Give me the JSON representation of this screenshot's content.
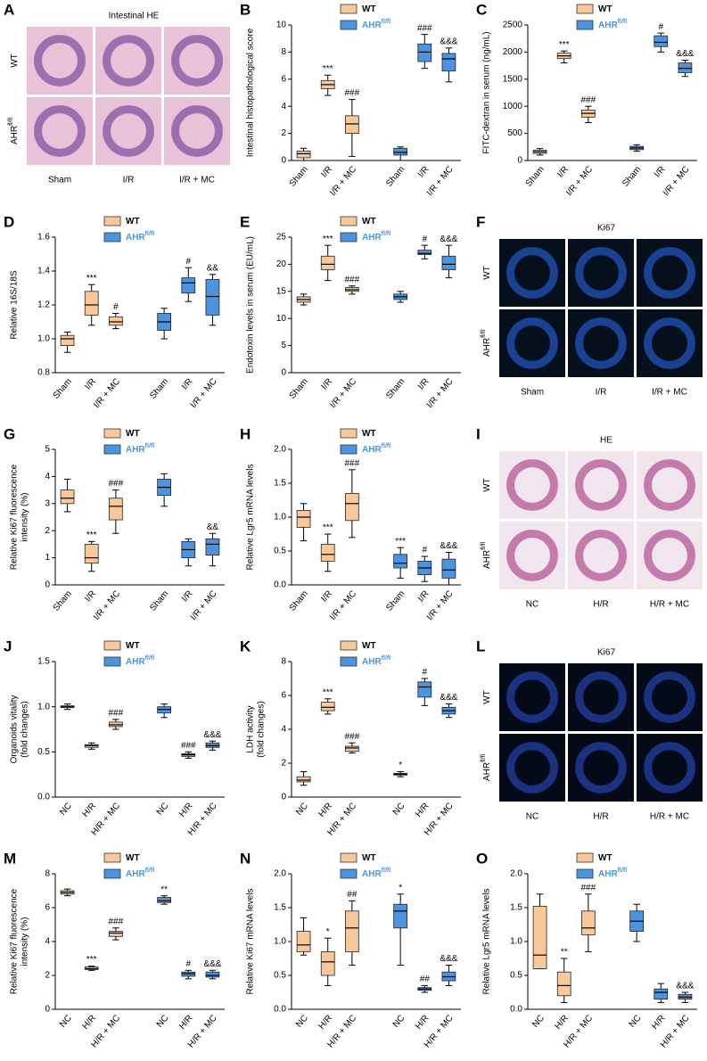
{
  "image_panels": [
    {
      "label": "A",
      "title": "Intestinal HE",
      "rows": [
        {
          "name": "WT"
        },
        {
          "name": "AHR",
          "sup": "fl/fl"
        }
      ],
      "columns": [
        "Sham",
        "I/R",
        "I/R + MC"
      ]
    },
    {
      "label": "F",
      "title": "Ki67",
      "rows": [
        {
          "name": "WT"
        },
        {
          "name": "AHR",
          "sup": "fl/fl"
        }
      ],
      "columns": [
        "Sham",
        "I/R",
        "I/R + MC"
      ]
    },
    {
      "label": "I",
      "title": "HE",
      "rows": [
        {
          "name": "WT"
        },
        {
          "name": "AHR",
          "sup": "fl/fl"
        }
      ],
      "columns": [
        "NC",
        "H/R",
        "H/R + MC"
      ]
    },
    {
      "label": "L",
      "title": "Ki67",
      "rows": [
        {
          "name": "WT"
        },
        {
          "name": "AHR",
          "sup": "fl/fl"
        }
      ],
      "columns": [
        "NC",
        "H/R",
        "H/R + MC"
      ]
    }
  ],
  "chart_data": [
    {
      "type": "box",
      "label": "B",
      "ylabel": [
        "Intestinal histopathological score"
      ],
      "ylim": [
        0,
        10
      ],
      "yticks": [
        0,
        2,
        4,
        6,
        8,
        10
      ],
      "categories": [
        "Sham",
        "I/R",
        "I/R + MC",
        "Sham",
        "I/R",
        "I/R + MC"
      ],
      "series": [
        {
          "name": "WT",
          "color": "#f8c89a",
          "boxes": [
            [
              0,
              0.2,
              0.5,
              0.7,
              0.9
            ],
            [
              4.8,
              5.3,
              5.6,
              5.9,
              6.3
            ],
            [
              0.3,
              2,
              2.7,
              3.3,
              4.5
            ]
          ],
          "annotations": [
            null,
            "***",
            "###"
          ]
        },
        {
          "name": "AHR",
          "sup": "fl/fl",
          "color": "#4d94e0",
          "boxes": [
            [
              0,
              0.4,
              0.6,
              0.9,
              1
            ],
            [
              6.8,
              7.3,
              8,
              8.6,
              9.3
            ],
            [
              5.8,
              6.6,
              7.5,
              7.9,
              8.3
            ]
          ],
          "annotations": [
            null,
            "###",
            "&&&"
          ]
        }
      ]
    },
    {
      "type": "box",
      "label": "C",
      "ylabel": [
        "FITC-dextran in serum (ng/mL)"
      ],
      "ylim": [
        0,
        2500
      ],
      "yticks": [
        0,
        500,
        1000,
        1500,
        2000,
        2500
      ],
      "categories": [
        "Sham",
        "I/R",
        "I/R + MC",
        "Sham",
        "I/R",
        "I/R + MC"
      ],
      "series": [
        {
          "name": "WT",
          "color": "#f8c89a",
          "boxes": [
            [
              100,
              130,
              160,
              190,
              220
            ],
            [
              1800,
              1880,
              1930,
              1980,
              2020
            ],
            [
              700,
              800,
              870,
              930,
              1000
            ]
          ],
          "annotations": [
            null,
            "***",
            "###"
          ]
        },
        {
          "name": "AHR",
          "sup": "fl/fl",
          "color": "#4d94e0",
          "boxes": [
            [
              170,
              200,
              230,
              260,
              290
            ],
            [
              2000,
              2100,
              2180,
              2300,
              2350
            ],
            [
              1550,
              1620,
              1700,
              1800,
              1850
            ]
          ],
          "annotations": [
            null,
            "#",
            "&&&"
          ]
        }
      ]
    },
    {
      "type": "box",
      "label": "D",
      "ylabel": [
        "Relative 16S/18S"
      ],
      "ylim": [
        0.8,
        1.6
      ],
      "yticks": [
        0.8,
        {
          "value": 1,
          "label": "1.0"
        },
        1.2,
        1.4,
        1.6
      ],
      "categories": [
        "Sham",
        "I/R",
        "I/R + MC",
        "Sham",
        "I/R",
        "I/R + MC"
      ],
      "series": [
        {
          "name": "WT",
          "color": "#f8c89a",
          "boxes": [
            [
              0.92,
              0.96,
              1.0,
              1.02,
              1.04
            ],
            [
              1.08,
              1.14,
              1.2,
              1.28,
              1.32
            ],
            [
              1.06,
              1.08,
              1.1,
              1.13,
              1.15
            ]
          ],
          "annotations": [
            null,
            "***",
            "#"
          ]
        },
        {
          "name": "AHR",
          "sup": "fl/fl",
          "color": "#4d94e0",
          "boxes": [
            [
              1.0,
              1.05,
              1.1,
              1.15,
              1.18
            ],
            [
              1.22,
              1.27,
              1.33,
              1.36,
              1.42
            ],
            [
              1.08,
              1.14,
              1.25,
              1.35,
              1.38
            ]
          ],
          "annotations": [
            null,
            "#",
            "&&"
          ]
        }
      ]
    },
    {
      "type": "box",
      "label": "E",
      "ylabel": [
        "Endotoxin levels in serum (EU/mL)"
      ],
      "ylim": [
        0,
        25
      ],
      "yticks": [
        0,
        5,
        10,
        15,
        20,
        25
      ],
      "categories": [
        "Sham",
        "I/R",
        "I/R + MC",
        "Sham",
        "I/R",
        "I/R + MC"
      ],
      "series": [
        {
          "name": "WT",
          "color": "#f8c89a",
          "boxes": [
            [
              12.5,
              13,
              13.5,
              14,
              14.5
            ],
            [
              17,
              19,
              20,
              21.5,
              23.5
            ],
            [
              14.5,
              15,
              15.3,
              15.7,
              16
            ]
          ],
          "annotations": [
            null,
            "***",
            "###"
          ]
        },
        {
          "name": "AHR",
          "sup": "fl/fl",
          "color": "#4d94e0",
          "boxes": [
            [
              13,
              13.5,
              14,
              14.5,
              15
            ],
            [
              21,
              21.8,
              22,
              22.6,
              23.5
            ],
            [
              17.5,
              19,
              20,
              21.5,
              23.5
            ]
          ],
          "annotations": [
            null,
            "#",
            "&&&"
          ]
        }
      ]
    },
    {
      "type": "box",
      "label": "G",
      "ylabel": [
        "Relative Ki67 fluorescence",
        "intensity (%)"
      ],
      "ylim": [
        0,
        5
      ],
      "yticks": [
        0,
        1,
        2,
        3,
        4,
        5
      ],
      "categories": [
        "Sham",
        "I/R",
        "I/R + MC",
        "Sham",
        "I/R",
        "I/R + MC"
      ],
      "series": [
        {
          "name": "WT",
          "color": "#f8c89a",
          "boxes": [
            [
              2.7,
              3,
              3.2,
              3.5,
              3.9
            ],
            [
              0.5,
              0.8,
              1,
              1.5,
              1.6
            ],
            [
              1.9,
              2.4,
              2.9,
              3.2,
              3.5
            ]
          ],
          "annotations": [
            null,
            "***",
            "###"
          ]
        },
        {
          "name": "AHR",
          "sup": "fl/fl",
          "color": "#4d94e0",
          "boxes": [
            [
              2.9,
              3.3,
              3.6,
              3.9,
              4.1
            ],
            [
              0.7,
              1,
              1.3,
              1.6,
              1.7
            ],
            [
              0.7,
              1.1,
              1.5,
              1.7,
              1.9
            ]
          ],
          "annotations": [
            null,
            null,
            "&&"
          ]
        }
      ]
    },
    {
      "type": "box",
      "label": "H",
      "ylabel": [
        "Relative Lgr5 mRNA  levels"
      ],
      "ylim": [
        0,
        2
      ],
      "yticks": [
        {
          "value": 0,
          "label": "0.0"
        },
        0.5,
        {
          "value": 1,
          "label": "1.0"
        },
        1.5,
        {
          "value": 2,
          "label": "2.0"
        }
      ],
      "categories": [
        "Sham",
        "I/R",
        "I/R + MC",
        "Sham",
        "I/R",
        "I/R + MC"
      ],
      "series": [
        {
          "name": "WT",
          "color": "#f8c89a",
          "boxes": [
            [
              0.65,
              0.85,
              1,
              1.1,
              1.2
            ],
            [
              0.2,
              0.35,
              0.45,
              0.6,
              0.75
            ],
            [
              0.7,
              0.95,
              1.2,
              1.35,
              1.7
            ]
          ],
          "annotations": [
            null,
            "***",
            "###"
          ]
        },
        {
          "name": "AHR",
          "sup": "fl/fl",
          "color": "#4d94e0",
          "boxes": [
            [
              0.1,
              0.25,
              0.32,
              0.45,
              0.55
            ],
            [
              0.05,
              0.15,
              0.25,
              0.35,
              0.42
            ],
            [
              0,
              0.1,
              0.22,
              0.38,
              0.48
            ]
          ],
          "annotations": [
            "***",
            "#",
            "&&&"
          ]
        }
      ]
    },
    {
      "type": "box",
      "label": "J",
      "ylabel": [
        "Organoids vitality",
        "(fold changes)"
      ],
      "ylim": [
        0,
        1.5
      ],
      "yticks": [
        {
          "value": 0,
          "label": "0.0"
        },
        0.5,
        {
          "value": 1,
          "label": "1.0"
        },
        1.5
      ],
      "categories": [
        "NC",
        "H/R",
        "H/R + MC",
        "NC",
        "H/R",
        "H/R + MC"
      ],
      "series": [
        {
          "name": "WT",
          "color": "#f8c89a",
          "boxes": [
            [
              0.97,
              0.99,
              1,
              1.01,
              1.03
            ],
            [
              0.53,
              0.55,
              0.57,
              0.58,
              0.6
            ],
            [
              0.75,
              0.78,
              0.8,
              0.83,
              0.86
            ]
          ],
          "annotations": [
            null,
            null,
            "###"
          ]
        },
        {
          "name": "AHR",
          "sup": "fl/fl",
          "color": "#4d94e0",
          "boxes": [
            [
              0.88,
              0.93,
              0.97,
              1,
              1.03
            ],
            [
              0.43,
              0.45,
              0.47,
              0.48,
              0.5
            ],
            [
              0.52,
              0.55,
              0.57,
              0.6,
              0.62
            ]
          ],
          "annotations": [
            null,
            "###",
            "&&&"
          ]
        }
      ]
    },
    {
      "type": "box",
      "label": "K",
      "ylabel": [
        "LDH activity",
        "(fold changes)"
      ],
      "ylim": [
        0,
        8
      ],
      "yticks": [
        0,
        2,
        4,
        6,
        8
      ],
      "categories": [
        "NC",
        "H/R",
        "H/R + MC",
        "NC",
        "H/R",
        "H/R + MC"
      ],
      "series": [
        {
          "name": "WT",
          "color": "#f8c89a",
          "boxes": [
            [
              0.7,
              0.9,
              1,
              1.2,
              1.5
            ],
            [
              4.9,
              5.1,
              5.3,
              5.6,
              5.8
            ],
            [
              2.6,
              2.7,
              2.9,
              3,
              3.2
            ]
          ],
          "annotations": [
            null,
            "***",
            "###"
          ]
        },
        {
          "name": "AHR",
          "sup": "fl/fl",
          "color": "#4d94e0",
          "boxes": [
            [
              1.2,
              1.3,
              1.35,
              1.4,
              1.5
            ],
            [
              5.4,
              5.9,
              6.5,
              6.8,
              7
            ],
            [
              4.7,
              4.9,
              5.1,
              5.3,
              5.5
            ]
          ],
          "annotations": [
            "*",
            "#",
            "&&&"
          ]
        }
      ]
    },
    {
      "type": "box",
      "label": "M",
      "ylabel": [
        "Relative Ki67 fluorescence",
        "intensity (%)"
      ],
      "ylim": [
        0,
        8
      ],
      "yticks": [
        0,
        2,
        4,
        6,
        8
      ],
      "categories": [
        "NC",
        "H/R",
        "H/R + MC",
        "NC",
        "H/R",
        "H/R + MC"
      ],
      "series": [
        {
          "name": "WT",
          "color": "#f8c89a",
          "boxes": [
            [
              6.7,
              6.8,
              6.9,
              7,
              7.1
            ],
            [
              2.3,
              2.35,
              2.4,
              2.5,
              2.55
            ],
            [
              4.1,
              4.3,
              4.5,
              4.6,
              4.8
            ]
          ],
          "annotations": [
            null,
            "***",
            "###"
          ]
        },
        {
          "name": "AHR",
          "sup": "fl/fl",
          "color": "#4d94e0",
          "boxes": [
            [
              6.2,
              6.3,
              6.4,
              6.6,
              6.7
            ],
            [
              1.8,
              1.95,
              2.1,
              2.2,
              2.3
            ],
            [
              1.8,
              1.9,
              2,
              2.2,
              2.3
            ]
          ],
          "annotations": [
            "**",
            "#",
            "&&&"
          ]
        }
      ]
    },
    {
      "type": "box",
      "label": "N",
      "ylabel": [
        "Relative Ki67 mRNA levels"
      ],
      "ylim": [
        0,
        2
      ],
      "yticks": [
        {
          "value": 0,
          "label": "0.0"
        },
        0.5,
        {
          "value": 1,
          "label": "1.0"
        },
        1.5,
        {
          "value": 2,
          "label": "2.0"
        }
      ],
      "categories": [
        "NC",
        "H/R",
        "H/R + MC",
        "NC",
        "H/R",
        "H/R + MC"
      ],
      "series": [
        {
          "name": "WT",
          "color": "#f8c89a",
          "boxes": [
            [
              0.8,
              0.85,
              0.95,
              1.15,
              1.35
            ],
            [
              0.35,
              0.5,
              0.7,
              0.85,
              1.05
            ],
            [
              0.65,
              0.85,
              1.2,
              1.45,
              1.6
            ]
          ],
          "annotations": [
            null,
            "*",
            "##"
          ]
        },
        {
          "name": "AHR",
          "sup": "fl/fl",
          "color": "#4d94e0",
          "boxes": [
            [
              0.65,
              1.2,
              1.45,
              1.55,
              1.7
            ],
            [
              0.25,
              0.28,
              0.3,
              0.32,
              0.35
            ],
            [
              0.35,
              0.42,
              0.48,
              0.55,
              0.65
            ]
          ],
          "annotations": [
            "*",
            "##",
            "&&&"
          ]
        }
      ]
    },
    {
      "type": "box",
      "label": "O",
      "ylabel": [
        "Relative Lgr5 mRNA  levels"
      ],
      "ylim": [
        0,
        2
      ],
      "yticks": [
        {
          "value": 0,
          "label": "0.0"
        },
        0.5,
        {
          "value": 1,
          "label": "1.0"
        },
        1.5,
        {
          "value": 2,
          "label": "2.0"
        }
      ],
      "categories": [
        "NC",
        "H/R",
        "H/R + MC",
        "NC",
        "H/R",
        "H/R + MC"
      ],
      "series": [
        {
          "name": "WT",
          "color": "#f8c89a",
          "boxes": [
            [
              0.6,
              0.6,
              0.8,
              1.52,
              1.7
            ],
            [
              0.1,
              0.2,
              0.35,
              0.55,
              0.75
            ],
            [
              0.85,
              1.1,
              1.2,
              1.45,
              1.7
            ]
          ],
          "annotations": [
            null,
            "**",
            "###"
          ]
        },
        {
          "name": "AHR",
          "sup": "fl/fl",
          "color": "#4d94e0",
          "boxes": [
            [
              1,
              1.15,
              1.3,
              1.45,
              1.55
            ],
            [
              0.1,
              0.15,
              0.25,
              0.3,
              0.38
            ],
            [
              0.1,
              0.15,
              0.18,
              0.22,
              0.25
            ]
          ],
          "annotations": [
            null,
            null,
            "&&&"
          ]
        }
      ]
    }
  ]
}
